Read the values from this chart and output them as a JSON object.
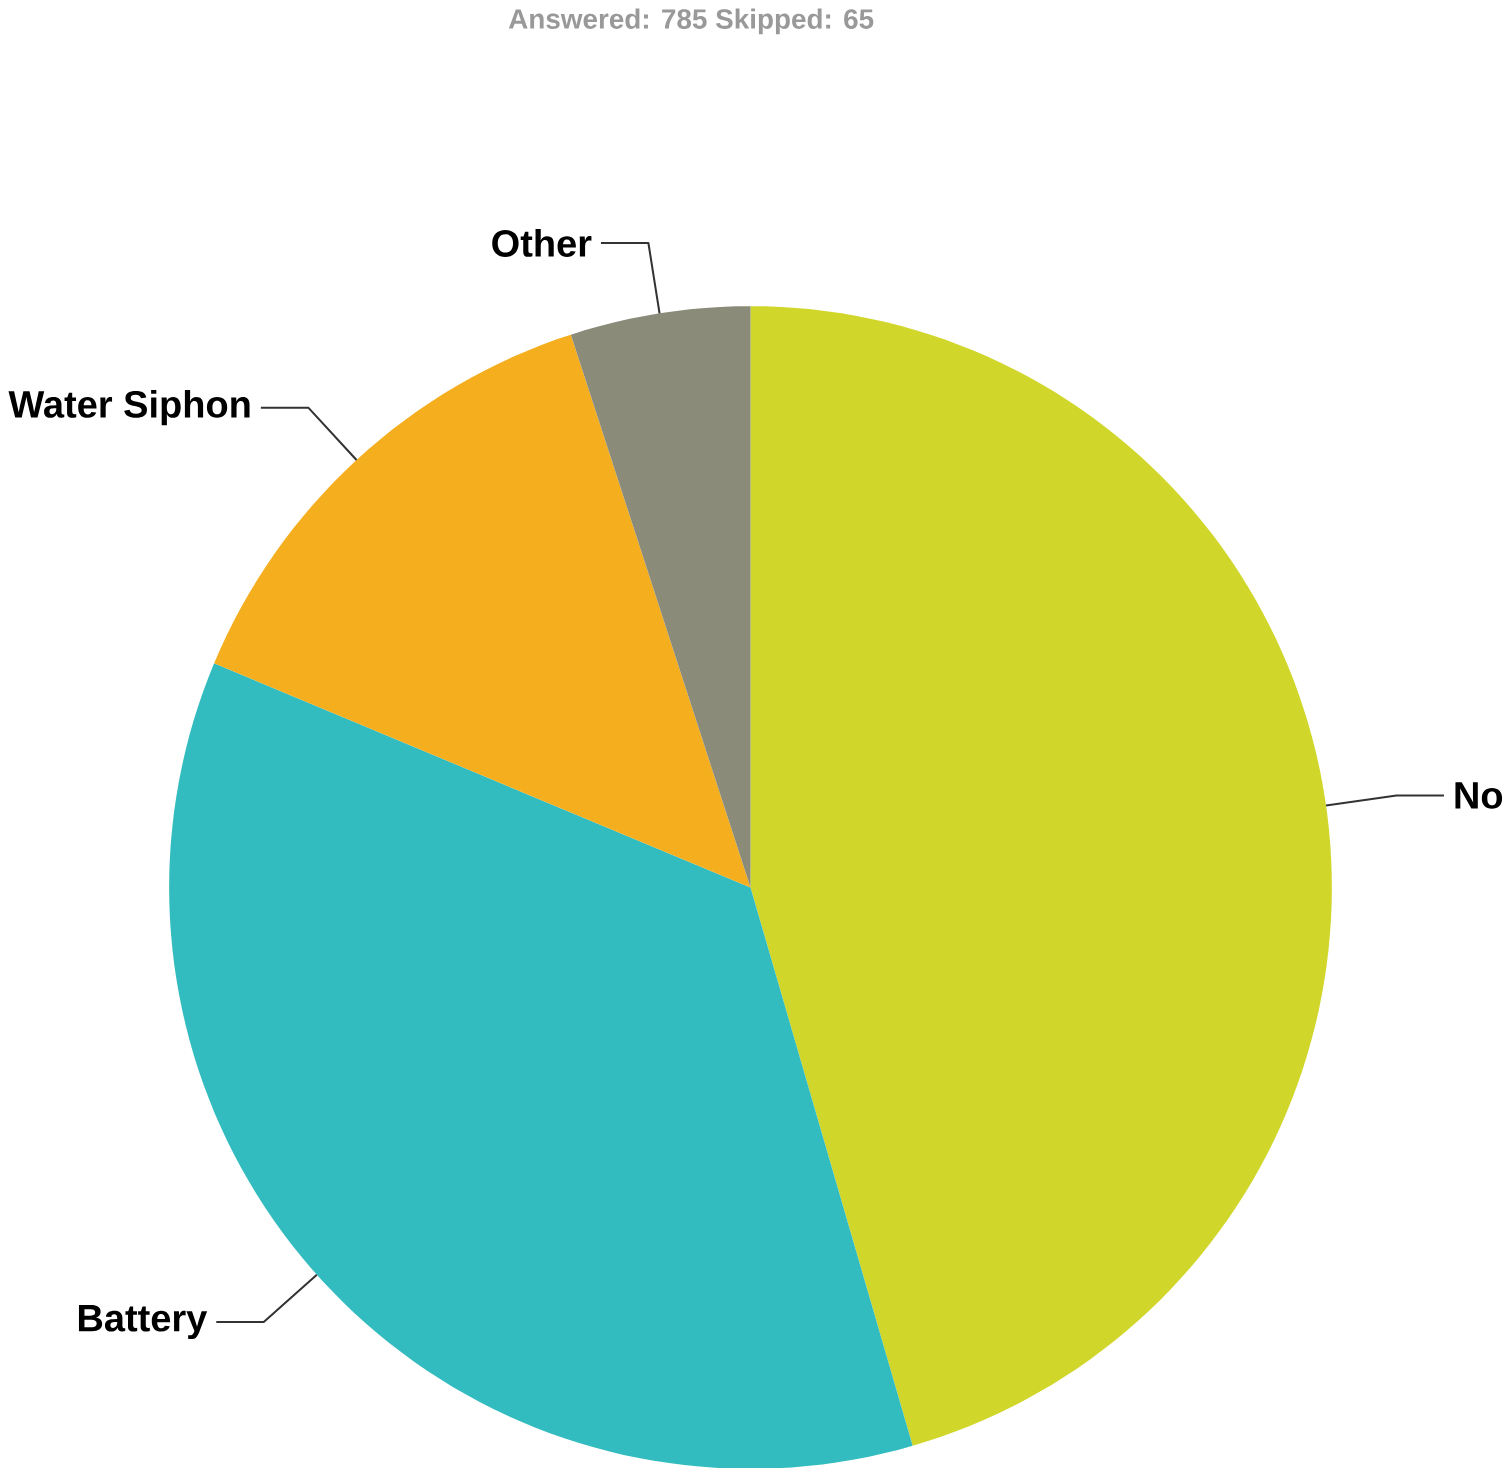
{
  "chart_data": {
    "type": "pie",
    "title": "Answered: 785    Skipped: 65",
    "categories": [
      "No",
      "Battery",
      "Water Siphon",
      "Other"
    ],
    "values": [
      45.5,
      35.8,
      13.7,
      5.0
    ],
    "colors": [
      "#d0d62a",
      "#33bcbf",
      "#f5ae1e",
      "#8b8b7a"
    ]
  }
}
